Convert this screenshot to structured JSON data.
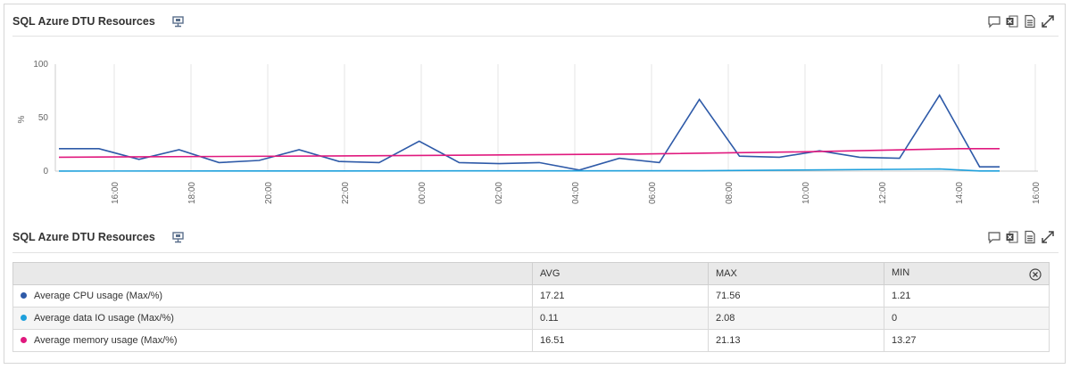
{
  "panels": {
    "chart": {
      "title": "SQL Azure DTU Resources"
    },
    "table": {
      "title": "SQL Azure DTU Resources"
    }
  },
  "icons": {
    "title": "monitor-icon",
    "actions": [
      "comment-icon",
      "excel-export-icon",
      "pdf-export-icon",
      "expand-icon"
    ]
  },
  "colors": {
    "cpu": "#2e5aa8",
    "io": "#1ea0dc",
    "memory": "#e0197e",
    "grid": "#e6e6e6",
    "axis": "#cccccc"
  },
  "chart_data": {
    "type": "line",
    "title": "",
    "ylabel": "%",
    "ylim": [
      0,
      100
    ],
    "yticks": [
      "0",
      "50",
      "100"
    ],
    "grid": true,
    "xticks": [
      "16:00",
      "18:00",
      "20:00",
      "22:00",
      "00:00",
      "02:00",
      "04:00",
      "06:00",
      "08:00",
      "10:00",
      "12:00",
      "14:00",
      "16:00"
    ],
    "x": [
      "15:30",
      "16:00",
      "16:30",
      "17:00",
      "17:30",
      "18:00",
      "18:30",
      "19:00",
      "19:30",
      "20:00",
      "20:30",
      "21:00",
      "21:30",
      "22:00",
      "22:30",
      "23:00",
      "23:30",
      "00:00",
      "00:30",
      "01:00",
      "01:30",
      "02:00",
      "02:30",
      "03:00",
      "03:30",
      "04:00",
      "04:30",
      "05:00",
      "05:30",
      "06:00",
      "06:30",
      "07:00",
      "07:30",
      "08:00",
      "08:30",
      "09:00",
      "09:30",
      "10:00",
      "10:30",
      "11:00",
      "11:30",
      "12:00",
      "12:30",
      "13:00",
      "13:30",
      "14:00",
      "14:30",
      "15:00"
    ],
    "series": [
      {
        "name": "Average CPU usage (Max/%)",
        "x": [
          "15:30",
          "16:30",
          "17:30",
          "18:30",
          "19:30",
          "20:30",
          "21:30",
          "22:30",
          "23:30",
          "00:30",
          "01:30",
          "02:30",
          "03:30",
          "04:30",
          "05:30",
          "06:30",
          "07:30",
          "08:30",
          "09:30",
          "10:30",
          "11:30",
          "12:30",
          "13:30",
          "14:30",
          "15:00"
        ],
        "values": [
          21,
          21,
          11,
          20,
          8,
          10,
          20,
          9,
          8,
          28,
          8,
          7,
          8,
          1,
          12,
          8,
          67,
          14,
          13,
          19,
          13,
          12,
          71,
          4,
          4
        ]
      },
      {
        "name": "Average data IO usage (Max/%)",
        "x": [
          "15:30",
          "07:30",
          "13:30",
          "14:30",
          "15:00"
        ],
        "values": [
          0.1,
          0.3,
          2,
          0.2,
          0.2
        ]
      },
      {
        "name": "Average memory usage (Max/%)",
        "x": [
          "15:30",
          "00:00",
          "06:00",
          "10:00",
          "14:00",
          "15:00"
        ],
        "values": [
          13,
          14.5,
          16,
          18,
          21,
          21
        ]
      }
    ]
  },
  "table": {
    "headers": [
      "",
      "AVG",
      "MAX",
      "MIN"
    ],
    "rows": [
      {
        "label": "Average CPU usage (Max/%)",
        "avg": "17.21",
        "max": "71.56",
        "min": "1.21",
        "color": "#2e5aa8"
      },
      {
        "label": "Average data IO usage (Max/%)",
        "avg": "0.11",
        "max": "2.08",
        "min": "0",
        "color": "#1ea0dc"
      },
      {
        "label": "Average memory usage (Max/%)",
        "avg": "16.51",
        "max": "21.13",
        "min": "13.27",
        "color": "#e0197e"
      }
    ]
  }
}
